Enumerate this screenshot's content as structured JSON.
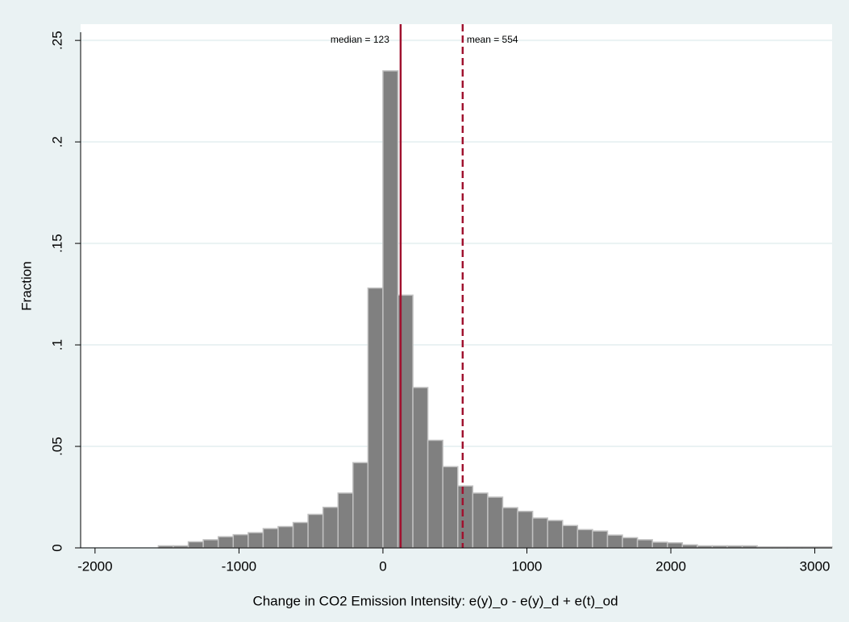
{
  "chart_data": {
    "type": "histogram",
    "x_label": "Change in CO2 Emission Intensity: e(y)_o - e(y)_d + e(t)_od",
    "y_label": "Fraction",
    "bins": [
      -1560,
      -1456,
      -1352,
      -1248,
      -1144,
      -1040,
      -936,
      -832,
      -728,
      -624,
      -520,
      -416,
      -312,
      -208,
      -104,
      0,
      104,
      208,
      312,
      416,
      520,
      624,
      728,
      832,
      936,
      1040,
      1144,
      1248,
      1352,
      1456,
      1560,
      1664,
      1768,
      1872,
      1976,
      2080,
      2184,
      2288,
      2392,
      2496,
      2600,
      2704,
      2808,
      2912,
      3016,
      3120
    ],
    "values": [
      0.001,
      0.001,
      0.003,
      0.004,
      0.0055,
      0.0065,
      0.0075,
      0.0095,
      0.0105,
      0.0125,
      0.0165,
      0.02,
      0.027,
      0.042,
      0.128,
      0.235,
      0.1245,
      0.079,
      0.053,
      0.04,
      0.0305,
      0.027,
      0.025,
      0.0198,
      0.018,
      0.0147,
      0.0135,
      0.011,
      0.009,
      0.0083,
      0.0063,
      0.005,
      0.004,
      0.0028,
      0.0025,
      0.0015,
      0.001,
      0.001,
      0.001,
      0.001,
      0.0005,
      0.0005,
      0.0005,
      0.0005,
      0.0005
    ],
    "color": "#808080",
    "edge_color": "#c0c0c0",
    "xlim": [
      -2100,
      3120
    ],
    "ylim": [
      0,
      0.258
    ],
    "xticks": [
      -2000,
      -1000,
      0,
      1000,
      2000,
      3000
    ],
    "yticks": [
      0,
      {
        "value": 0.05,
        "label": ".05"
      },
      {
        "value": 0.1,
        "label": ".1"
      },
      {
        "value": 0.15,
        "label": ".15"
      },
      {
        "value": 0.2,
        "label": ".2"
      },
      {
        "value": 0.25,
        "label": ".25"
      }
    ],
    "grid": true,
    "annotations": [
      {
        "value": 123,
        "label": "median = 123",
        "style": "solid",
        "color": "#a0112e"
      },
      {
        "value": 554,
        "label": "mean = 554",
        "style": "dashed",
        "color": "#a0112e"
      }
    ]
  }
}
